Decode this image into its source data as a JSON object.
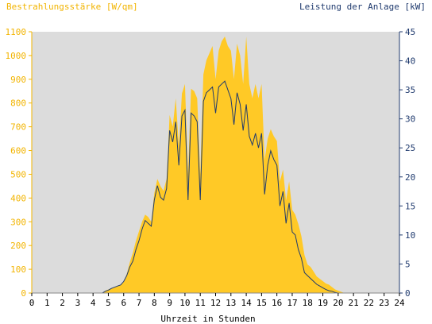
{
  "chart_data": {
    "type": "area",
    "left_axis_title": "Bestrahlungsstärke [W/qm]",
    "right_axis_title": "Leistung der Anlage [kW]",
    "xlabel": "Uhrzeit in Stunden",
    "x_ticks": [
      "0",
      "1",
      "2",
      "3",
      "4",
      "5",
      "6",
      "7",
      "8",
      "9",
      "10",
      "11",
      "12",
      "13",
      "14",
      "15",
      "16",
      "17",
      "18",
      "19",
      "20",
      "21",
      "22",
      "23",
      "24"
    ],
    "y_left_ticks": [
      "0",
      "100",
      "200",
      "300",
      "400",
      "500",
      "600",
      "700",
      "800",
      "900",
      "1000",
      "1100"
    ],
    "y_right_ticks": [
      "0",
      "5",
      "10",
      "15",
      "20",
      "25",
      "30",
      "35",
      "40",
      "45"
    ],
    "ylim_left": [
      0,
      1100
    ],
    "ylim_right": [
      0,
      45
    ],
    "xlim": [
      0,
      24
    ],
    "grid": false,
    "colors": {
      "irradiance": "#ffc926",
      "power": "#1f3a6e",
      "plot_bg": "#dcdcdc",
      "left_axis": "#f2b400",
      "right_axis": "#1f3a6e"
    },
    "series": [
      {
        "name": "Bestrahlungsstärke [W/qm]",
        "axis": "left",
        "x": [
          0,
          4.6,
          4.8,
          5.0,
          5.2,
          5.4,
          5.6,
          5.8,
          6.0,
          6.2,
          6.4,
          6.6,
          6.8,
          7.0,
          7.2,
          7.4,
          7.6,
          7.8,
          8.0,
          8.2,
          8.4,
          8.6,
          8.8,
          9.0,
          9.2,
          9.4,
          9.6,
          9.8,
          10.0,
          10.2,
          10.4,
          10.6,
          10.8,
          11.0,
          11.2,
          11.4,
          11.6,
          11.8,
          12.0,
          12.2,
          12.4,
          12.6,
          12.8,
          13.0,
          13.2,
          13.4,
          13.6,
          13.8,
          14.0,
          14.2,
          14.4,
          14.6,
          14.8,
          15.0,
          15.2,
          15.4,
          15.6,
          15.8,
          16.0,
          16.2,
          16.4,
          16.6,
          16.8,
          17.0,
          17.2,
          17.4,
          17.6,
          17.8,
          18.0,
          18.2,
          18.4,
          18.6,
          18.8,
          19.0,
          19.2,
          19.4,
          19.6,
          19.8,
          20.0,
          20.2,
          20.4,
          24
        ],
        "values": [
          0,
          0,
          10,
          15,
          20,
          25,
          30,
          35,
          50,
          80,
          130,
          170,
          220,
          260,
          300,
          330,
          320,
          300,
          420,
          480,
          450,
          430,
          480,
          750,
          700,
          820,
          620,
          840,
          880,
          500,
          860,
          850,
          820,
          500,
          920,
          980,
          1010,
          1040,
          900,
          1020,
          1060,
          1080,
          1040,
          1020,
          900,
          1050,
          1000,
          880,
          1080,
          880,
          820,
          880,
          820,
          880,
          560,
          650,
          690,
          660,
          640,
          470,
          520,
          390,
          470,
          350,
          330,
          290,
          240,
          160,
          120,
          110,
          90,
          70,
          60,
          50,
          40,
          35,
          25,
          15,
          10,
          5,
          0,
          0
        ]
      },
      {
        "name": "Leistung der Anlage [kW]",
        "axis": "right",
        "x": [
          0,
          4.6,
          4.8,
          5.0,
          5.2,
          5.4,
          5.6,
          5.8,
          6.0,
          6.2,
          6.4,
          6.6,
          6.8,
          7.0,
          7.2,
          7.4,
          7.6,
          7.8,
          8.0,
          8.2,
          8.4,
          8.6,
          8.8,
          9.0,
          9.2,
          9.4,
          9.6,
          9.8,
          10.0,
          10.2,
          10.4,
          10.6,
          10.8,
          11.0,
          11.2,
          11.4,
          11.6,
          11.8,
          12.0,
          12.2,
          12.4,
          12.6,
          12.8,
          13.0,
          13.2,
          13.4,
          13.6,
          13.8,
          14.0,
          14.2,
          14.4,
          14.6,
          14.8,
          15.0,
          15.2,
          15.4,
          15.6,
          15.8,
          16.0,
          16.2,
          16.4,
          16.6,
          16.8,
          17.0,
          17.2,
          17.4,
          17.6,
          17.8,
          18.0,
          18.2,
          18.4,
          18.6,
          18.8,
          19.0,
          19.2,
          19.4,
          19.6,
          19.8,
          20.0,
          20.2,
          20.4,
          24
        ],
        "values": [
          0,
          0,
          0.3,
          0.5,
          0.8,
          1.0,
          1.2,
          1.4,
          2.0,
          3.0,
          4.5,
          5.5,
          7.5,
          9.0,
          11.0,
          12.5,
          12.0,
          11.5,
          16.0,
          18.5,
          16.5,
          16.0,
          18.0,
          28.0,
          26.0,
          29.5,
          22.0,
          30.5,
          31.5,
          16.0,
          31.0,
          30.5,
          29.5,
          16.0,
          33.0,
          34.5,
          35.0,
          35.5,
          31.0,
          35.5,
          36.0,
          36.5,
          35.0,
          33.5,
          29.0,
          34.5,
          32.5,
          28.0,
          32.5,
          27.0,
          25.5,
          27.5,
          25.0,
          27.5,
          17.0,
          22.0,
          24.5,
          23.0,
          22.0,
          15.0,
          17.5,
          12.0,
          15.5,
          10.5,
          10.0,
          7.5,
          6.0,
          3.5,
          3.0,
          2.5,
          2.0,
          1.5,
          1.2,
          0.9,
          0.6,
          0.4,
          0.3,
          0.1,
          0,
          0,
          0,
          0
        ]
      }
    ]
  }
}
